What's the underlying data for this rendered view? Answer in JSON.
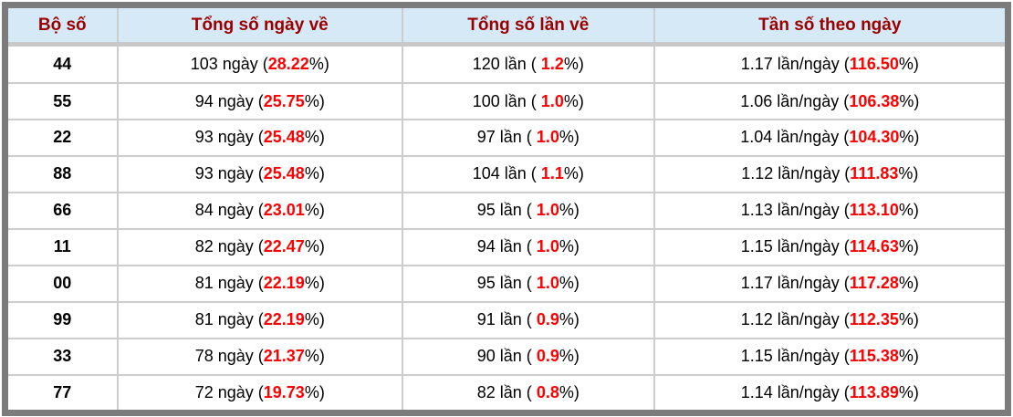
{
  "colors": {
    "page_bg": "#ffffff",
    "outer_border": "#7c7c7c",
    "header_bg": "#d6e9f7",
    "header_text": "#9b0000",
    "header_underline": "#c8c8c8",
    "cell_border": "#cdcdcd",
    "body_text": "#000000",
    "highlight": "#ff0000"
  },
  "formats": {
    "open_paren": " (",
    "open_paren_spaced": " ( ",
    "close_percent_paren": "%)"
  },
  "table": {
    "headers": [
      {
        "id": "pair",
        "label": "Bộ số"
      },
      {
        "id": "total_days",
        "label": "Tổng số ngày về"
      },
      {
        "id": "total_times",
        "label": "Tổng số lần về"
      },
      {
        "id": "frequency",
        "label": "Tần số theo ngày"
      }
    ],
    "rows": [
      {
        "pair": "44",
        "days": "103 ngày",
        "days_pct": "28.22",
        "times": "120 lần",
        "times_pct": "1.2",
        "freq": "1.17 lần/ngày",
        "freq_pct": "116.50"
      },
      {
        "pair": "55",
        "days": "94 ngày",
        "days_pct": "25.75",
        "times": "100 lần",
        "times_pct": "1.0",
        "freq": "1.06 lần/ngày",
        "freq_pct": "106.38"
      },
      {
        "pair": "22",
        "days": "93 ngày",
        "days_pct": "25.48",
        "times": "97 lần",
        "times_pct": "1.0",
        "freq": "1.04 lần/ngày",
        "freq_pct": "104.30"
      },
      {
        "pair": "88",
        "days": "93 ngày",
        "days_pct": "25.48",
        "times": "104 lần",
        "times_pct": "1.1",
        "freq": "1.12 lần/ngày",
        "freq_pct": "111.83"
      },
      {
        "pair": "66",
        "days": "84 ngày",
        "days_pct": "23.01",
        "times": "95 lần",
        "times_pct": "1.0",
        "freq": "1.13 lần/ngày",
        "freq_pct": "113.10"
      },
      {
        "pair": "11",
        "days": "82 ngày",
        "days_pct": "22.47",
        "times": "94 lần",
        "times_pct": "1.0",
        "freq": "1.15 lần/ngày",
        "freq_pct": "114.63"
      },
      {
        "pair": "00",
        "days": "81 ngày",
        "days_pct": "22.19",
        "times": "95 lần",
        "times_pct": "1.0",
        "freq": "1.17 lần/ngày",
        "freq_pct": "117.28"
      },
      {
        "pair": "99",
        "days": "81 ngày",
        "days_pct": "22.19",
        "times": "91 lần",
        "times_pct": "0.9",
        "freq": "1.12 lần/ngày",
        "freq_pct": "112.35"
      },
      {
        "pair": "33",
        "days": "78 ngày",
        "days_pct": "21.37",
        "times": "90 lần",
        "times_pct": "0.9",
        "freq": "1.15 lần/ngày",
        "freq_pct": "115.38"
      },
      {
        "pair": "77",
        "days": "72 ngày",
        "days_pct": "19.73",
        "times": "82 lần",
        "times_pct": "0.8",
        "freq": "1.14 lần/ngày",
        "freq_pct": "113.89"
      }
    ]
  }
}
